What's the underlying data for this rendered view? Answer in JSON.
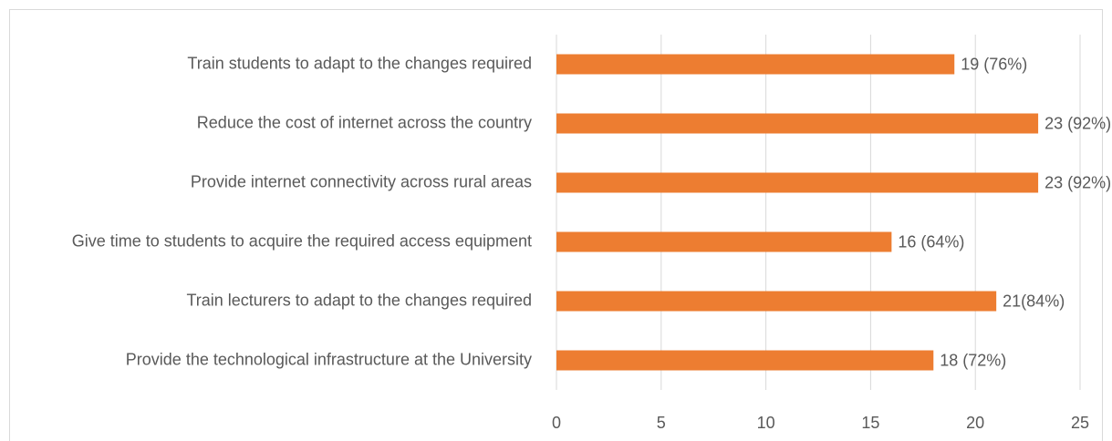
{
  "chart_data": {
    "type": "bar",
    "orientation": "horizontal",
    "categories": [
      "Train students to adapt to the changes required",
      "Reduce the cost of internet across the country",
      "Provide internet connectivity across rural areas",
      "Give time to students to acquire the required access equipment",
      "Train lecturers to adapt to the changes required",
      "Provide the technological infrastructure at the University"
    ],
    "values": [
      19,
      23,
      23,
      16,
      21,
      18
    ],
    "value_labels": [
      "19 (76%)",
      "23 (92%)",
      "23 (92%)",
      "16 (64%)",
      "21(84%)",
      "18 (72%)"
    ],
    "color": "#ed7d31",
    "xlim": [
      0,
      25
    ],
    "xticks": [
      0,
      5,
      10,
      15,
      20,
      25
    ],
    "grid": true
  }
}
